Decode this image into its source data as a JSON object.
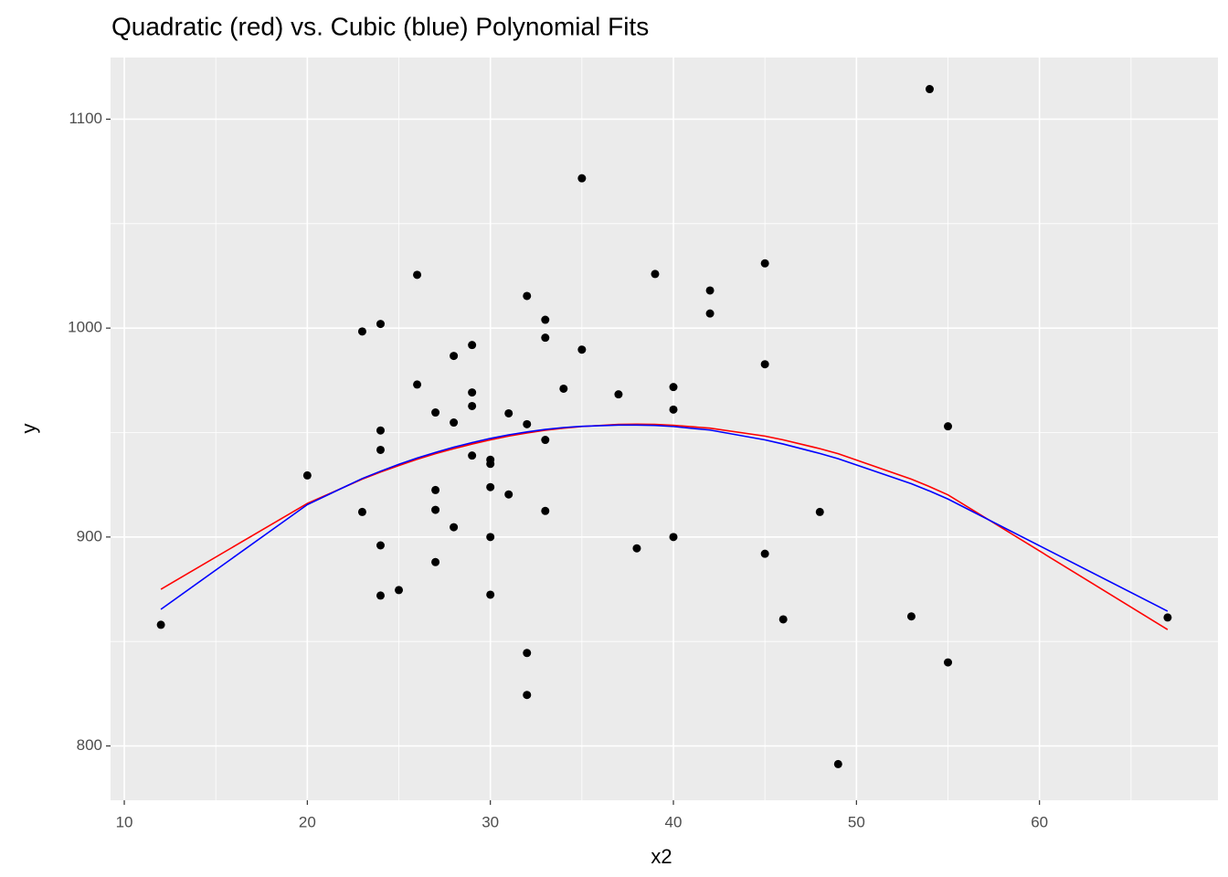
{
  "chart_data": {
    "type": "scatter",
    "title": "Quadratic (red) vs. Cubic (blue) Polynomial Fits",
    "x_label": "x2",
    "y_label": "y",
    "xlim": [
      9.25,
      69.75
    ],
    "ylim": [
      774,
      1129.5
    ],
    "xticks": [
      10,
      20,
      30,
      40,
      50,
      60
    ],
    "yticks": [
      800,
      900,
      1000,
      1100
    ],
    "grid": true,
    "points": {
      "color": "#000000",
      "x": [
        12,
        20,
        23,
        23,
        24,
        24,
        24,
        24,
        24,
        25,
        26,
        26,
        27,
        27,
        27,
        27,
        28,
        28,
        28,
        29,
        29,
        29,
        29,
        30,
        30,
        30,
        30,
        30,
        31,
        31,
        32,
        32,
        32,
        32,
        33,
        33,
        33,
        33,
        34,
        35,
        35,
        37,
        38,
        39,
        40,
        40,
        40,
        42,
        42,
        45,
        45,
        45,
        46,
        48,
        49,
        53,
        54,
        55,
        55,
        67
      ],
      "values": [
        858,
        929.5,
        998.4,
        912,
        1002,
        951,
        941.7,
        896,
        872,
        874.6,
        1025.5,
        973,
        959.6,
        922.5,
        913,
        888,
        986.7,
        954.8,
        904.7,
        991.9,
        969.2,
        962.7,
        939,
        937,
        935,
        923.9,
        900,
        872.4,
        959.2,
        920.4,
        1015.4,
        954,
        844.5,
        824.4,
        1004,
        995.4,
        946.5,
        912.5,
        971,
        1071.7,
        989.7,
        968.3,
        894.6,
        1025.9,
        971.8,
        961,
        900,
        1018,
        1007,
        1031,
        982.7,
        892,
        860.6,
        912,
        791.3,
        862,
        1114.4,
        953,
        840,
        861.5
      ]
    },
    "fit_x": [
      12,
      20,
      23,
      24,
      25,
      26,
      27,
      28,
      29,
      30,
      31,
      32,
      33,
      34,
      35,
      37,
      38,
      39,
      40,
      42,
      45,
      46,
      48,
      49,
      53,
      54,
      55,
      67
    ],
    "fits": [
      {
        "color": "#ff0000",
        "values": [
          875.0,
          916.1,
          927.7,
          931.1,
          934.2,
          937.2,
          939.9,
          942.3,
          944.5,
          946.5,
          948.3,
          949.8,
          951.1,
          952.1,
          952.9,
          953.9,
          954,
          953.9,
          953.5,
          952.1,
          948.3,
          946.5,
          942.3,
          939.9,
          927.7,
          924.1,
          920.2,
          855.7
        ]
      },
      {
        "color": "#0000ff",
        "values": [
          865.4,
          915.5,
          928,
          931.5,
          934.8,
          937.8,
          940.5,
          943,
          945.2,
          947.2,
          948.9,
          950.3,
          951.5,
          952.4,
          953,
          953.6,
          953.6,
          953.4,
          952.9,
          951.2,
          946.5,
          944.5,
          940,
          937.5,
          925.5,
          922,
          918.2,
          864.5
        ]
      }
    ]
  }
}
